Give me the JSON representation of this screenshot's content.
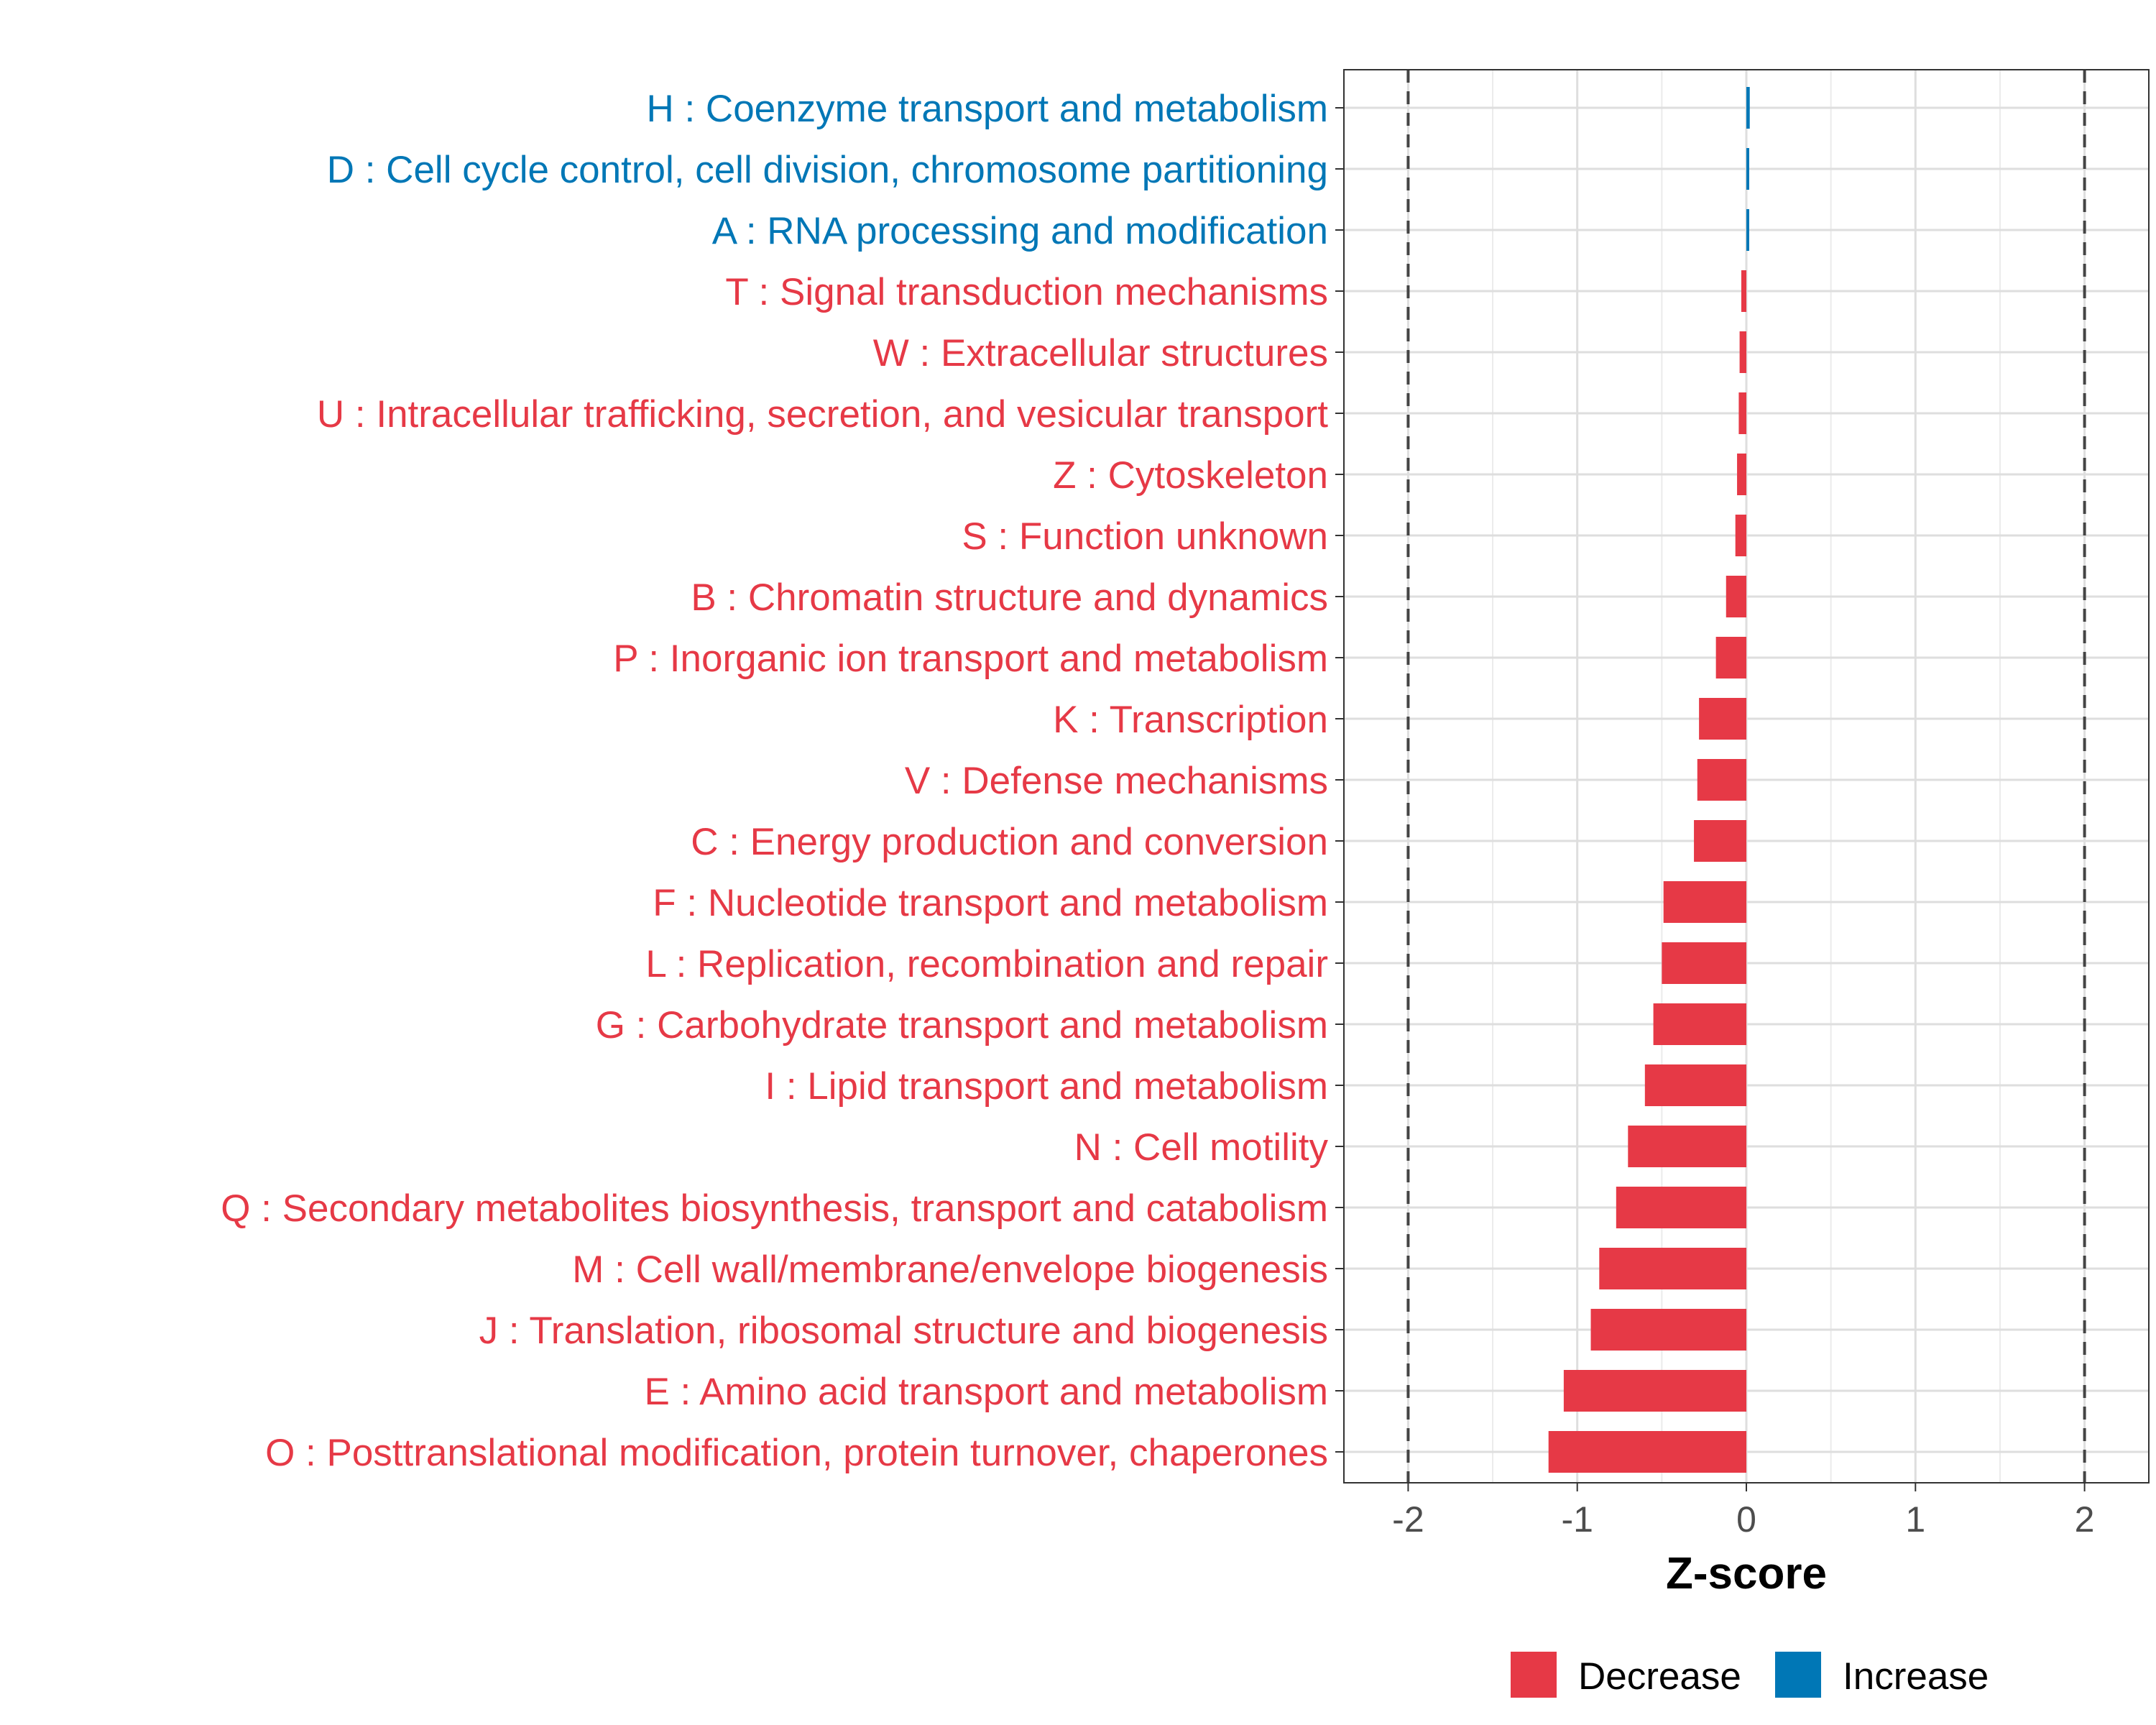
{
  "chart_data": {
    "type": "bar",
    "orientation": "horizontal",
    "xlabel": "Z-score",
    "ylabel": "",
    "xlim": [
      -2.38,
      2.38
    ],
    "xticks": [
      -2,
      -1,
      0,
      1,
      2
    ],
    "xtick_labels": [
      "-2",
      "-1",
      "0",
      "1",
      "2"
    ],
    "reference_lines": [
      -2,
      2
    ],
    "grid": true,
    "categories": [
      "H : Coenzyme transport and metabolism",
      "D : Cell cycle control, cell division, chromosome partitioning",
      "A : RNA processing and modification",
      "T : Signal transduction mechanisms",
      "W : Extracellular structures",
      "U : Intracellular trafficking, secretion, and vesicular transport",
      "Z : Cytoskeleton",
      "S : Function unknown",
      "B : Chromatin structure and dynamics",
      "P : Inorganic ion transport and metabolism",
      "K : Transcription",
      "V : Defense mechanisms",
      "C : Energy production and conversion",
      "F : Nucleotide transport and metabolism",
      "L : Replication, recombination and repair",
      "G : Carbohydrate transport and metabolism",
      "I : Lipid transport and metabolism",
      "N : Cell motility",
      "Q : Secondary metabolites biosynthesis, transport and catabolism",
      "M : Cell wall/membrane/envelope biogenesis",
      "J : Translation, ribosomal structure and biogenesis",
      "E : Amino acid transport and metabolism",
      "O : Posttranslational modification, protein turnover, chaperones"
    ],
    "values": [
      0.02,
      0.01,
      0.005,
      -0.03,
      -0.04,
      -0.045,
      -0.055,
      -0.065,
      -0.12,
      -0.18,
      -0.28,
      -0.29,
      -0.31,
      -0.49,
      -0.5,
      -0.55,
      -0.6,
      -0.7,
      -0.77,
      -0.87,
      -0.92,
      -1.08,
      -1.17
    ],
    "directions": [
      "Increase",
      "Increase",
      "Increase",
      "Decrease",
      "Decrease",
      "Decrease",
      "Decrease",
      "Decrease",
      "Decrease",
      "Decrease",
      "Decrease",
      "Decrease",
      "Decrease",
      "Decrease",
      "Decrease",
      "Decrease",
      "Decrease",
      "Decrease",
      "Decrease",
      "Decrease",
      "Decrease",
      "Decrease",
      "Decrease"
    ],
    "legend": {
      "position": "bottom",
      "entries": [
        {
          "label": "Decrease",
          "color": "#E63946"
        },
        {
          "label": "Increase",
          "color": "#0077B6"
        }
      ]
    },
    "colors": {
      "Decrease": "#E63946",
      "Increase": "#0077B6"
    }
  }
}
